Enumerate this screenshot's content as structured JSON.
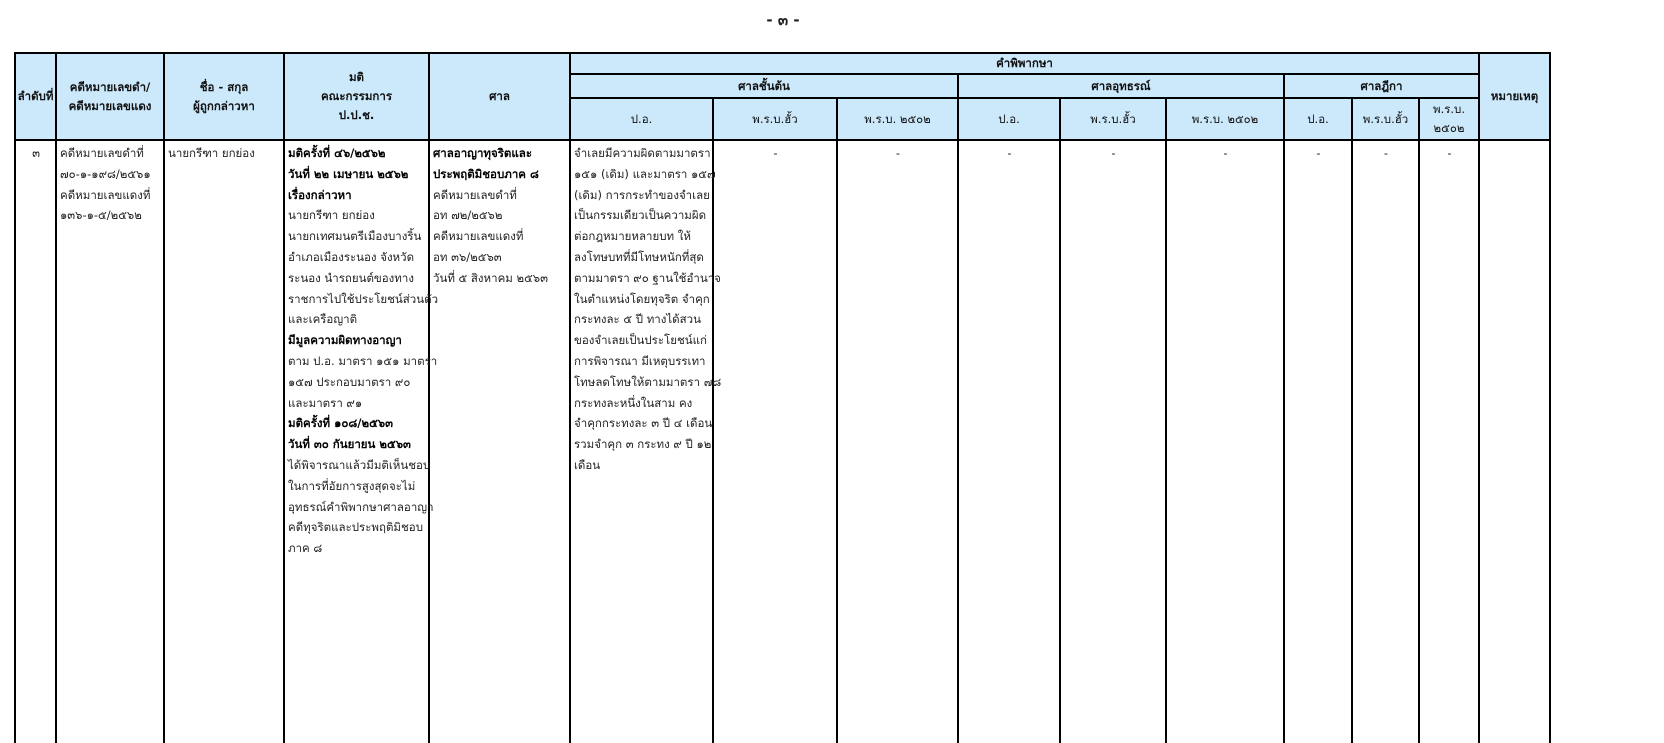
{
  "page_number": "- ๓ -",
  "header": {
    "no": "ลำดับที่",
    "case_no": [
      "คดีหมายเลขดำ/",
      "คดีหมายเลขแดง"
    ],
    "name": [
      "ชื่อ - สกุล",
      "ผู้ถูกกล่าวหา"
    ],
    "resolution": [
      "มติ",
      "คณะกรรมการ",
      "ป.ป.ช."
    ],
    "court": "ศาล",
    "judgment": "คำพิพากษา",
    "first_instance": "ศาลชั้นต้น",
    "appeal": "ศาลอุทธรณ์",
    "supreme": "ศาลฎีกา",
    "remarks": "หมายเหตุ",
    "sub": [
      "ป.อ.",
      "พ.ร.บ.ฮั้ว",
      "พ.ร.บ. ๒๕๐๒",
      "ป.อ.",
      "พ.ร.บ.ฮั้ว",
      "พ.ร.บ. ๒๕๐๒",
      "ป.อ.",
      "พ.ร.บ.ฮั้ว",
      "พ.ร.บ. ๒๕๐๒"
    ]
  },
  "row": {
    "no": "๓",
    "case_no": [
      "คดีหมายเลขดำที่",
      "๗๐-๑-๑๙๘/๒๕๖๑",
      "คดีหมายเลขแดงที่",
      "๑๓๖-๑-๕/๒๕๖๒"
    ],
    "name": "นายกรีฑา  ยกย่อง",
    "resolution": [
      {
        "t": "มติครั้งที่ ๔๖/๒๕๖๒",
        "b": true
      },
      {
        "t": "วันที่ ๒๒ เมษายน ๒๕๖๒",
        "b": true
      },
      {
        "t": "เรื่องกล่าวหา",
        "b": true
      },
      {
        "t": "นายกรีฑา ยกย่อง",
        "b": false
      },
      {
        "t": "นายกเทศมนตรีเมืองบางริ้น",
        "b": false
      },
      {
        "t": "อำเภอเมืองระนอง จังหวัด",
        "b": false
      },
      {
        "t": "ระนอง นำรถยนต์ของทาง",
        "b": false
      },
      {
        "t": "ราชการไปใช้ประโยชน์ส่วนตัว",
        "b": false
      },
      {
        "t": "และเครือญาติ",
        "b": false
      },
      {
        "t": "มีมูลความผิดทางอาญา",
        "b": true
      },
      {
        "t": "ตาม ป.อ. มาตรา ๑๕๑ มาตรา",
        "b": false
      },
      {
        "t": " ๑๕๗ ประกอบมาตรา ๙๐",
        "b": false
      },
      {
        "t": "และมาตรา ๙๑",
        "b": false
      },
      {
        "t": "มติครั้งที่ ๑๐๘/๒๕๖๓",
        "b": true
      },
      {
        "t": "วันที่ ๓๐ กันยายน ๒๕๖๓",
        "b": true
      },
      {
        "t": "ได้พิจารณาแล้วมีมติเห็นชอบ",
        "b": false
      },
      {
        "t": "ในการที่อัยการสูงสุดจะไม่",
        "b": false
      },
      {
        "t": "อุทธรณ์คำพิพากษาศาลอาญา",
        "b": false
      },
      {
        "t": "คดีทุจริตและประพฤติมิชอบ",
        "b": false
      },
      {
        "t": "ภาค ๘",
        "b": false
      }
    ],
    "court": [
      {
        "t": "ศาลอาญาทุจริตและ",
        "b": true
      },
      {
        "t": "ประพฤติมิชอบภาค ๘",
        "b": true
      },
      {
        "t": "คดีหมายเลขดำที่",
        "b": false
      },
      {
        "t": "อท ๗๒/๒๕๖๒",
        "b": false
      },
      {
        "t": "คดีหมายเลขแดงที่",
        "b": false
      },
      {
        "t": "อท ๓๖/๒๕๖๓",
        "b": false
      },
      {
        "t": "วันที่ ๕ สิงหาคม ๒๕๖๓",
        "b": false
      }
    ],
    "first_po": [
      "จำเลยมีความผิดตามมาตรา",
      "๑๕๑ (เดิม) และมาตรา ๑๕๗",
      "(เดิม) การกระทำของจำเลย",
      "เป็นกรรมเดียวเป็นความผิด",
      "ต่อกฎหมายหลายบท ให้",
      "ลงโทษบทที่มีโทษหนักที่สุด",
      "ตามมาตรา ๙๐ ฐานใช้อำนาจ",
      "ในตำแหน่งโดยทุจริต จำคุก",
      "กระทงละ ๕ ปี ทางได้สวน",
      "ของจำเลยเป็นประโยชน์แก่",
      "การพิจารณา มีเหตุบรรเทา",
      "โทษลดโทษให้ตามมาตรา ๗๘",
      " กระทงละหนึ่งในสาม คง",
      "จำคุกกระทงละ ๓ ปี ๔ เดือน",
      " รวมจำคุก ๓ กระทง ๙ ปี ๑๒",
      " เดือน"
    ],
    "dashes": [
      "-",
      "-",
      "-",
      "-",
      "-",
      "-",
      "-",
      "-"
    ],
    "remarks": ""
  }
}
